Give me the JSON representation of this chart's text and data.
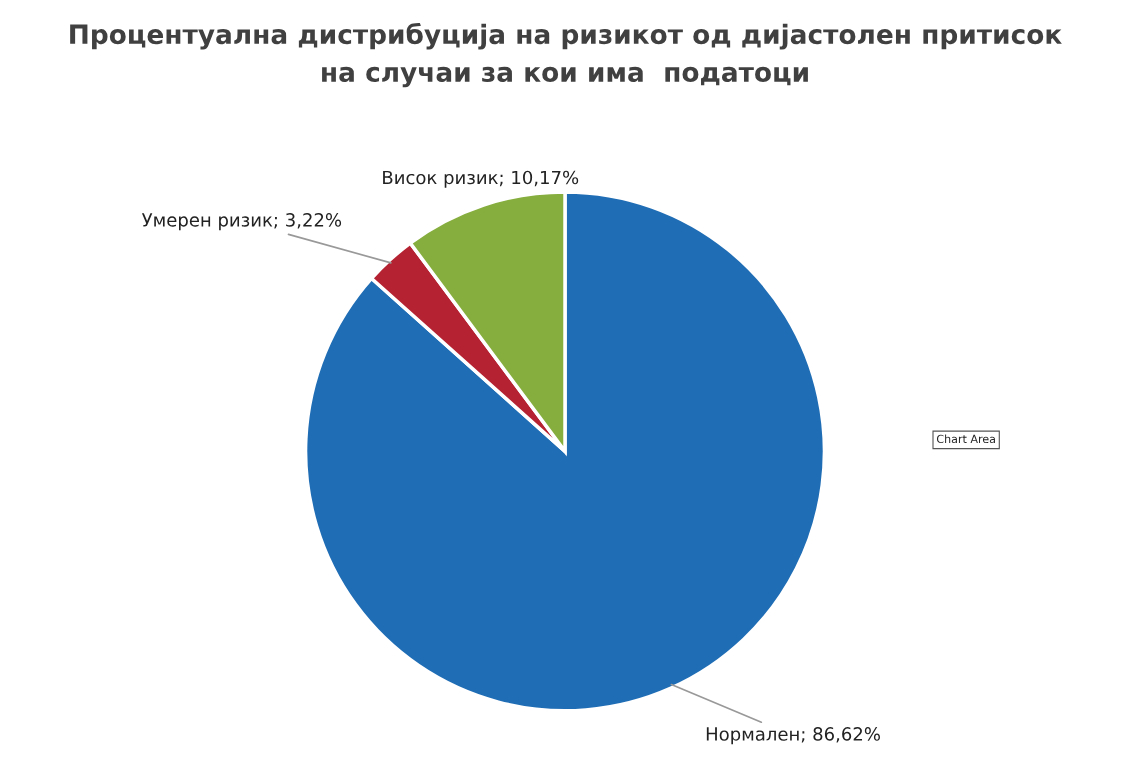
{
  "chart_data": {
    "type": "pie",
    "title": "Процентуална дистрибуција на ризикот од дијастолен притисок\nна случаи за кои има  податоци",
    "categories": [
      "Нормален",
      "Умерен ризик",
      "Висок ризик"
    ],
    "values": [
      86.62,
      3.22,
      10.17
    ],
    "colors": [
      "#1f6db5",
      "#b52231",
      "#86ae3e"
    ],
    "value_labels": [
      "86,62%",
      "3,22%",
      "10,17%"
    ],
    "annotations": [
      "Chart Area"
    ]
  }
}
